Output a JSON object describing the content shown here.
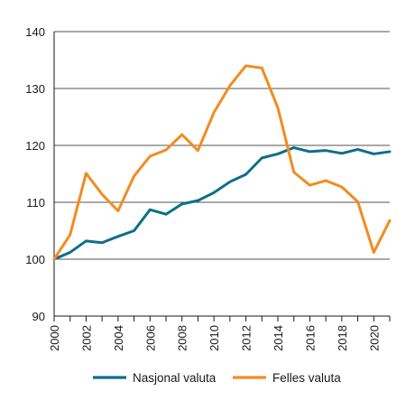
{
  "chart_data": {
    "type": "line",
    "x": [
      2000,
      2001,
      2002,
      2003,
      2004,
      2005,
      2006,
      2007,
      2008,
      2009,
      2010,
      2011,
      2012,
      2013,
      2014,
      2015,
      2016,
      2017,
      2018,
      2019,
      2020,
      2021
    ],
    "x_ticks": [
      "2000",
      "2002",
      "2004",
      "2006",
      "2008",
      "2010",
      "2012",
      "2014",
      "2016",
      "2018",
      "2020"
    ],
    "y_ticks": [
      "90",
      "100",
      "110",
      "120",
      "130",
      "140"
    ],
    "ylim": [
      90,
      140
    ],
    "xlim": [
      2000,
      2021
    ],
    "grid": "horizontal",
    "legend_position": "bottom",
    "series": [
      {
        "name": "Nasjonal valuta",
        "color": "#0e6e8c",
        "values": [
          100,
          101.2,
          103.2,
          102.9,
          104.0,
          105.0,
          108.7,
          107.9,
          109.7,
          110.3,
          111.7,
          113.6,
          114.9,
          117.8,
          118.5,
          119.6,
          118.9,
          119.1,
          118.6,
          119.3,
          118.5,
          118.9
        ]
      },
      {
        "name": "Felles valuta",
        "color": "#f28c1e",
        "values": [
          100,
          104.3,
          115.1,
          111.4,
          108.5,
          114.6,
          118.1,
          119.2,
          121.9,
          119.1,
          125.8,
          130.5,
          134.0,
          133.6,
          126.6,
          115.3,
          113.0,
          113.8,
          112.7,
          110.1,
          101.2,
          106.8
        ]
      }
    ]
  }
}
